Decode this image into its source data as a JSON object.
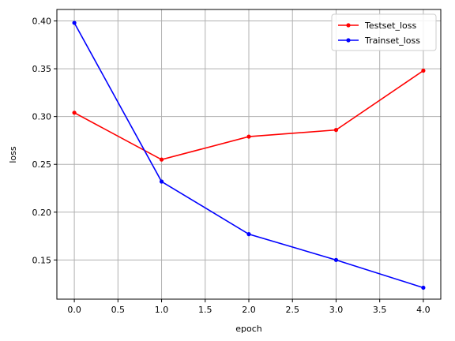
{
  "chart_data": {
    "type": "line",
    "xlabel": "epoch",
    "ylabel": "loss",
    "x": [
      0,
      1,
      2,
      3,
      4
    ],
    "xlim": [
      -0.2,
      4.2
    ],
    "ylim": [
      0.109,
      0.412
    ],
    "xticks": [
      0.0,
      0.5,
      1.0,
      1.5,
      2.0,
      2.5,
      3.0,
      3.5,
      4.0
    ],
    "xtick_labels": [
      "0.0",
      "0.5",
      "1.0",
      "1.5",
      "2.0",
      "2.5",
      "3.0",
      "3.5",
      "4.0"
    ],
    "yticks": [
      0.15,
      0.2,
      0.25,
      0.3,
      0.35,
      0.4
    ],
    "ytick_labels": [
      "0.15",
      "0.20",
      "0.25",
      "0.30",
      "0.35",
      "0.40"
    ],
    "grid": true,
    "legend_position": "top-right",
    "series": [
      {
        "name": "Testset_loss",
        "color": "#ff0000",
        "marker": "dot",
        "values": [
          0.304,
          0.255,
          0.279,
          0.286,
          0.348
        ]
      },
      {
        "name": "Trainset_loss",
        "color": "#0000ff",
        "marker": "dot",
        "values": [
          0.398,
          0.232,
          0.177,
          0.15,
          0.121
        ]
      }
    ]
  }
}
